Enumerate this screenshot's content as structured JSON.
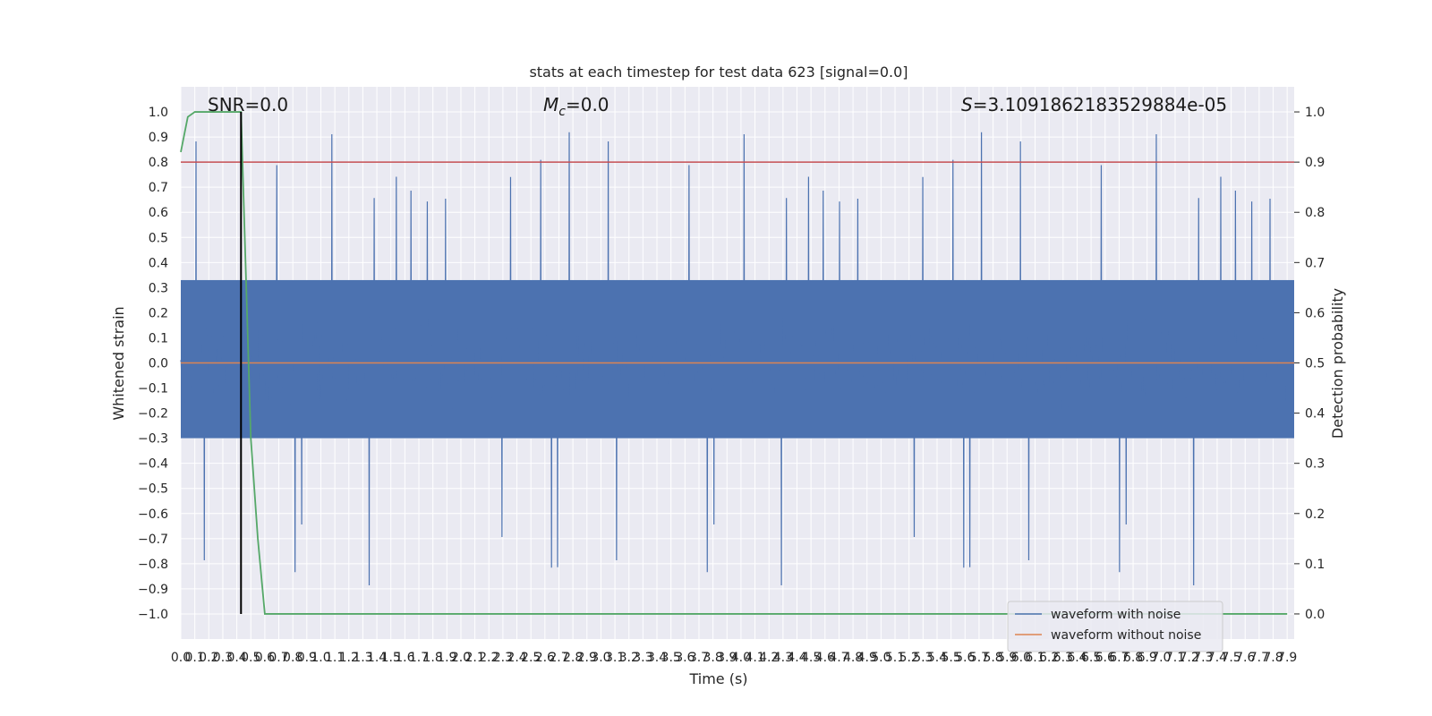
{
  "chart_data": {
    "type": "line",
    "title": "stats at each timestep for test data 623 [signal=0.0]",
    "xlabel": "Time (s)",
    "ylabel": "Whitened strain",
    "ylabel_right": "Detection probability",
    "xlim": [
      0.0,
      7.95
    ],
    "ylim": [
      -1.1,
      1.1
    ],
    "ylim_right": [
      -0.05,
      1.05
    ],
    "yticks": [
      -1.0,
      -0.9,
      -0.8,
      -0.7,
      -0.6,
      -0.5,
      -0.4,
      -0.3,
      -0.2,
      -0.1,
      0.0,
      0.1,
      0.2,
      0.3,
      0.4,
      0.5,
      0.6,
      0.7,
      0.8,
      0.9,
      1.0
    ],
    "yticks_right": [
      0.0,
      0.1,
      0.2,
      0.3,
      0.4,
      0.5,
      0.6,
      0.7,
      0.8,
      0.9,
      1.0
    ],
    "xtick_step": 0.1,
    "grid": true,
    "legend_position": "bottom-right",
    "annotations": {
      "snr": "SNR=0.0",
      "mc_symbol": "M",
      "mc_sub": "c",
      "mc_value": "=0.0",
      "s_symbol": "S",
      "s_value": "=3.1091862183529884e-05"
    },
    "threshold_right_axis": 0.9,
    "marker_time": 0.43,
    "series": [
      {
        "name": "waveform with noise",
        "color": "#4c72b0",
        "amplitude_envelope": 0.6
      },
      {
        "name": "waveform without noise",
        "color": "#dd8452",
        "values": "0.0"
      },
      {
        "color": "#55a868",
        "x": [
          0.0,
          0.05,
          0.1,
          0.15,
          0.2,
          0.25,
          0.3,
          0.35,
          0.4,
          0.43,
          0.5,
          0.55,
          0.6,
          0.65,
          7.9
        ],
        "y": [
          0.92,
          0.99,
          1.0,
          1.0,
          1.0,
          1.0,
          1.0,
          1.0,
          1.0,
          1.0,
          0.35,
          0.15,
          0.0,
          0.0,
          0.0
        ]
      }
    ],
    "colors": {
      "background": "#eaeaf2",
      "grid": "#ffffff",
      "threshold": "#c44e52",
      "marker": "#000000"
    }
  }
}
